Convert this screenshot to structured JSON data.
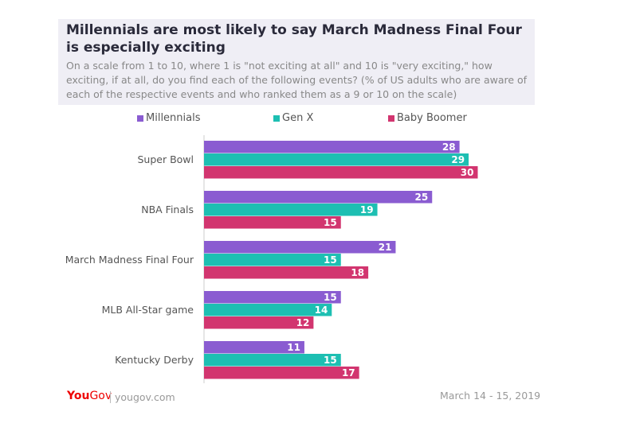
{
  "chart_data": {
    "type": "bar",
    "orientation": "horizontal",
    "title": "Millennials are most likely to say March Madness Final Four is especially exciting",
    "subtitle": "On a scale from 1 to 10, where 1 is \"not exciting at all\" and 10 is \"very exciting,\" how exciting, if at all, do you find each of the following events? (% of US adults who are aware of each of the respective events and who ranked them as a 9 or 10 on the scale)",
    "categories": [
      "Super Bowl",
      "NBA Finals",
      "March Madness Final Four",
      "MLB All-Star game",
      "Kentucky Derby"
    ],
    "series": [
      {
        "name": "Millennials",
        "color": "#8a5cd1",
        "values": [
          28,
          25,
          21,
          15,
          11
        ]
      },
      {
        "name": "Gen X",
        "color": "#1dbfb2",
        "values": [
          29,
          19,
          15,
          14,
          15
        ]
      },
      {
        "name": "Baby Boomer",
        "color": "#d2356f",
        "values": [
          30,
          15,
          18,
          12,
          17
        ]
      }
    ],
    "xlim": [
      0,
      30
    ],
    "grid": false,
    "legend_position": "top",
    "data_labels": true
  },
  "footer": {
    "logo": "YouGov",
    "url": "yougov.com",
    "date": "March 14 - 15, 2019"
  }
}
